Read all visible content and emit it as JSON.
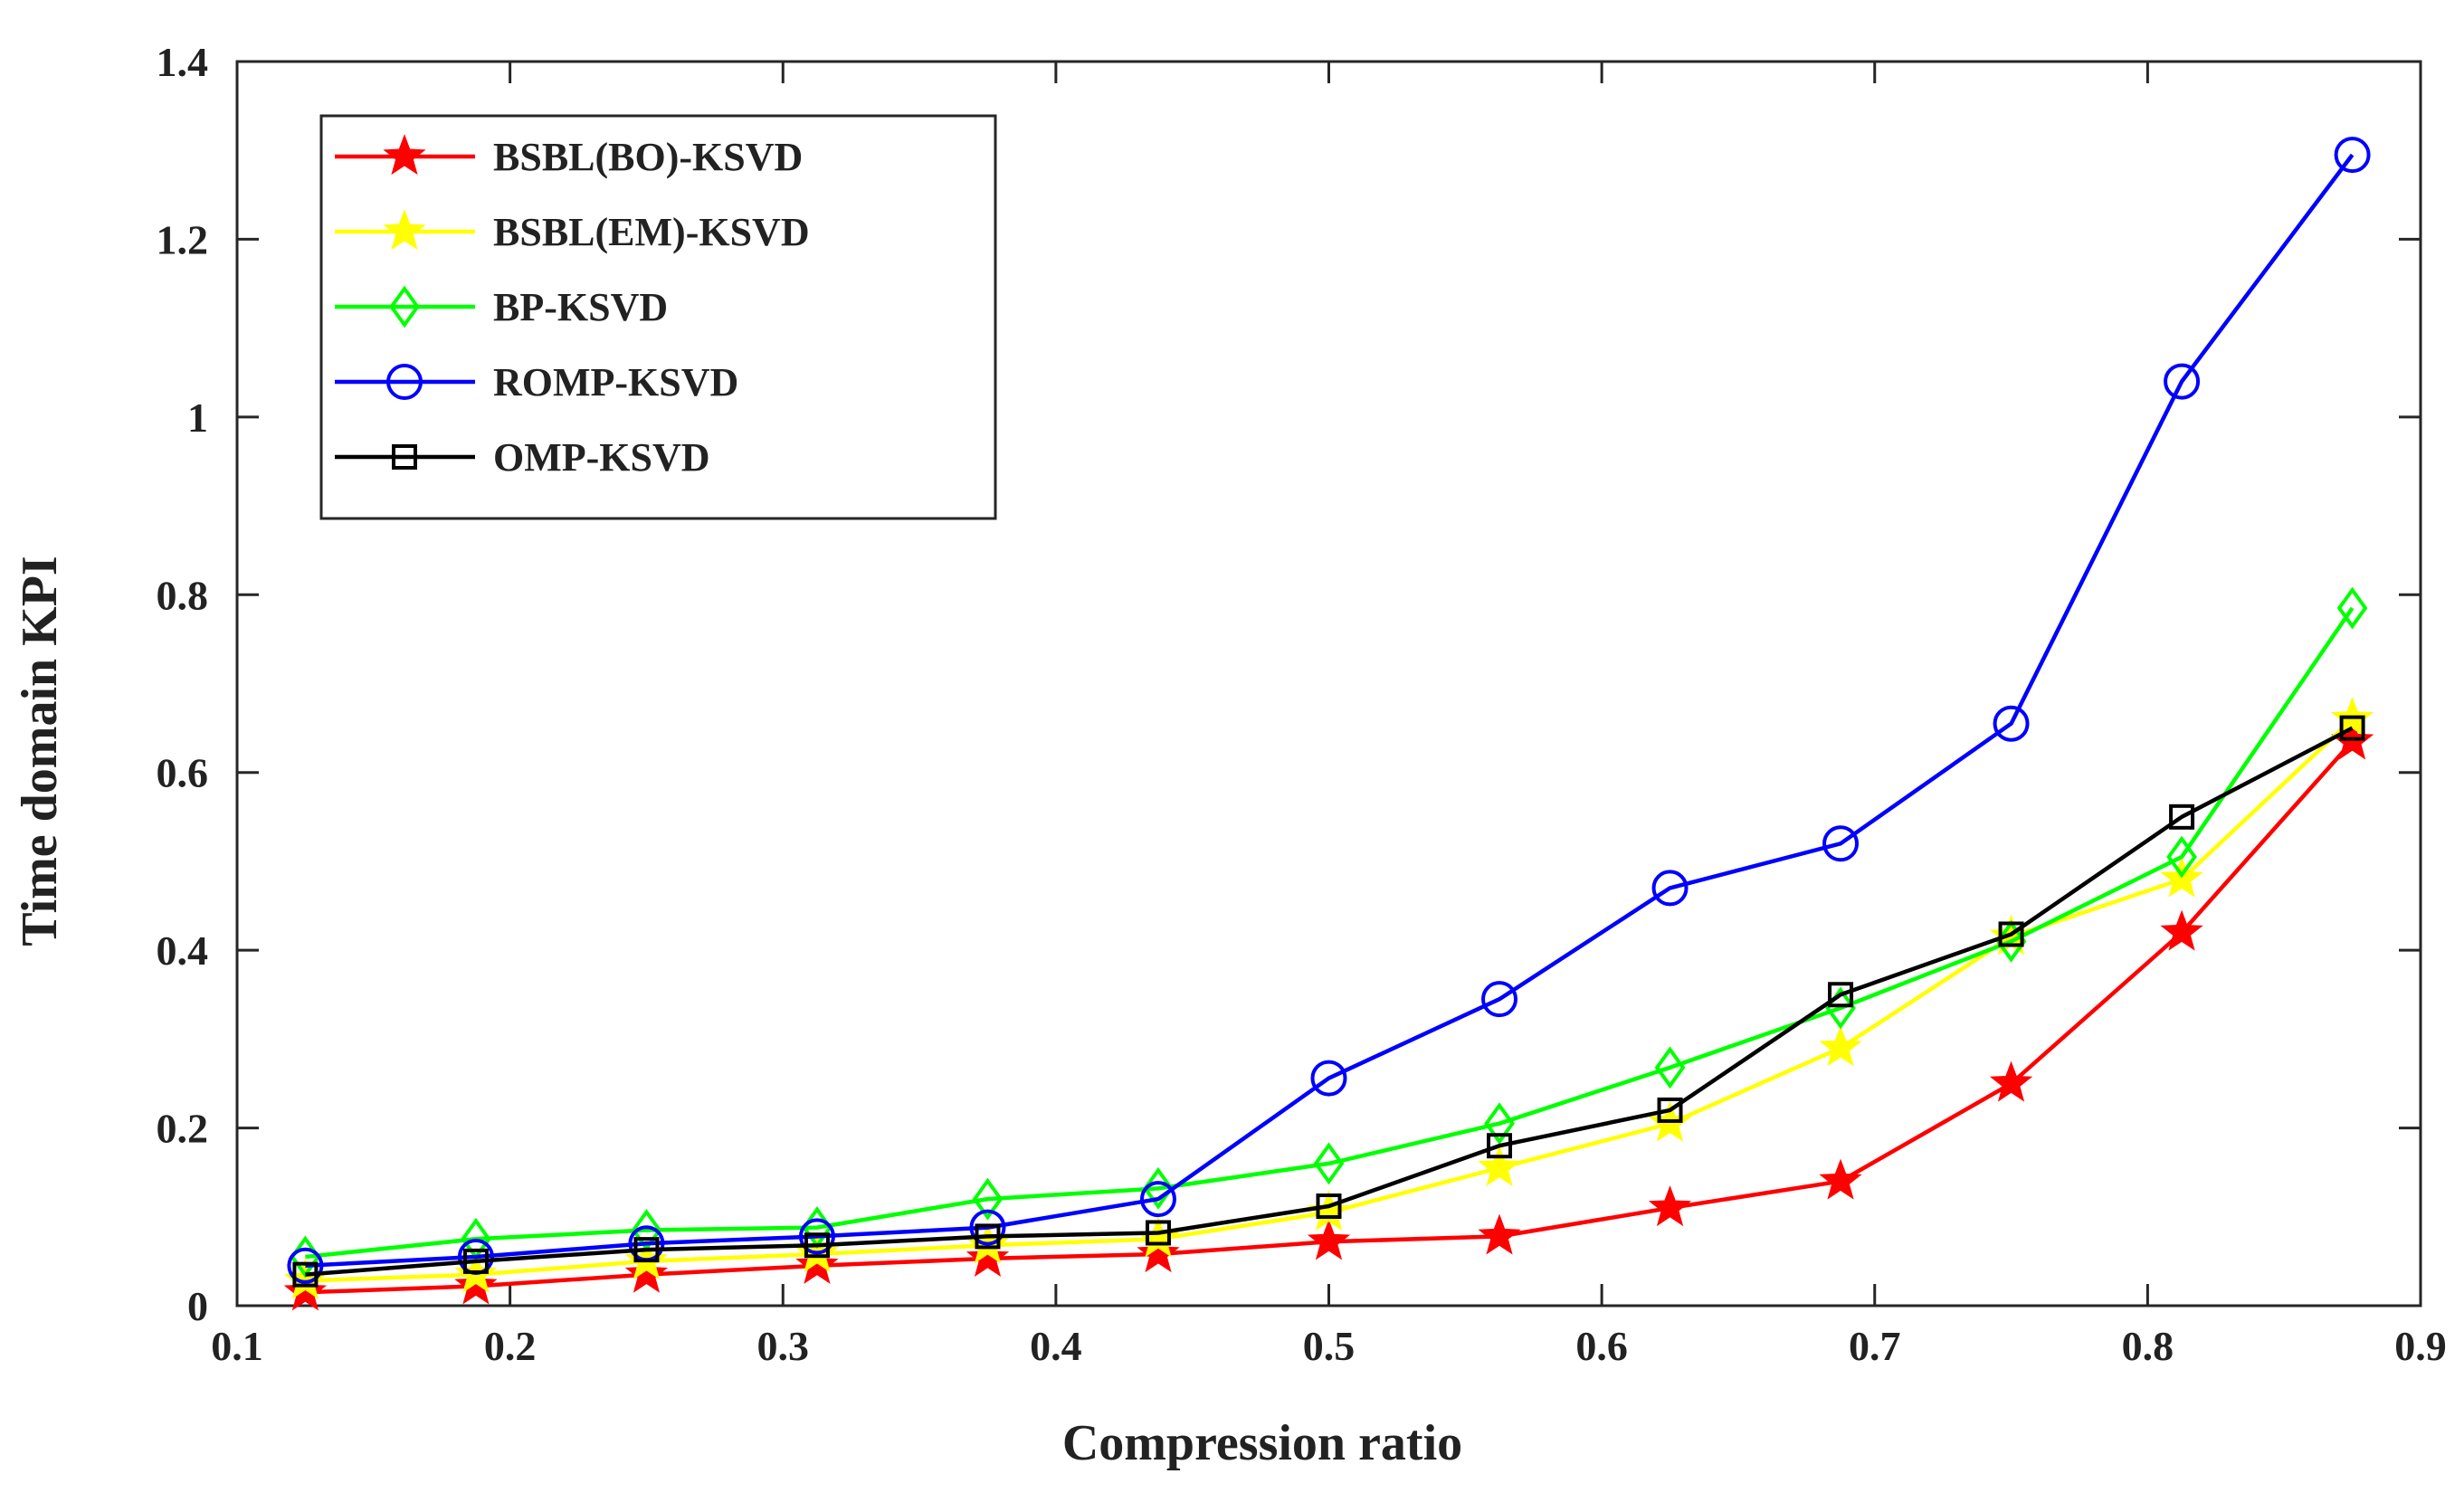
{
  "chart_data": {
    "type": "line",
    "title": "",
    "xlabel": "Compression ratio",
    "ylabel": "Time domain KPI",
    "xlim": [
      0.1,
      0.9
    ],
    "ylim": [
      0,
      1.4
    ],
    "xticks": [
      "0.1",
      "0.2",
      "0.3",
      "0.4",
      "0.5",
      "0.6",
      "0.7",
      "0.8",
      "0.9"
    ],
    "yticks": [
      "0",
      "0.2",
      "0.4",
      "0.6",
      "0.8",
      "1",
      "1.2",
      "1.4"
    ],
    "legend_position": "top-left",
    "grid": false,
    "x": [
      0.125,
      0.1875,
      0.25,
      0.3125,
      0.375,
      0.4375,
      0.5,
      0.5625,
      0.625,
      0.6875,
      0.75,
      0.8125,
      0.875
    ],
    "series": [
      {
        "name": "BSBL(BO)-KSVD",
        "color": "#ff0000",
        "marker": "star",
        "values": [
          0.015,
          0.022,
          0.035,
          0.045,
          0.053,
          0.058,
          0.072,
          0.078,
          0.11,
          0.14,
          0.25,
          0.42,
          0.635
        ]
      },
      {
        "name": "BSBL(EM)-KSVD",
        "color": "#ffff00",
        "marker": "star",
        "values": [
          0.028,
          0.035,
          0.05,
          0.058,
          0.068,
          0.075,
          0.105,
          0.155,
          0.205,
          0.29,
          0.415,
          0.48,
          0.66
        ]
      },
      {
        "name": "BP-KSVD",
        "color": "#00ff00",
        "marker": "diamond",
        "values": [
          0.055,
          0.075,
          0.085,
          0.088,
          0.12,
          0.132,
          0.16,
          0.205,
          0.268,
          0.335,
          0.41,
          0.505,
          0.785
        ]
      },
      {
        "name": "ROMP-KSVD",
        "color": "#0000ff",
        "marker": "circle",
        "values": [
          0.045,
          0.055,
          0.07,
          0.078,
          0.088,
          0.12,
          0.256,
          0.345,
          0.47,
          0.52,
          0.655,
          1.04,
          1.295
        ]
      },
      {
        "name": "OMP-KSVD",
        "color": "#000000",
        "marker": "square",
        "values": [
          0.035,
          0.05,
          0.063,
          0.068,
          0.078,
          0.082,
          0.112,
          0.18,
          0.22,
          0.35,
          0.418,
          0.55,
          0.65
        ]
      }
    ]
  }
}
